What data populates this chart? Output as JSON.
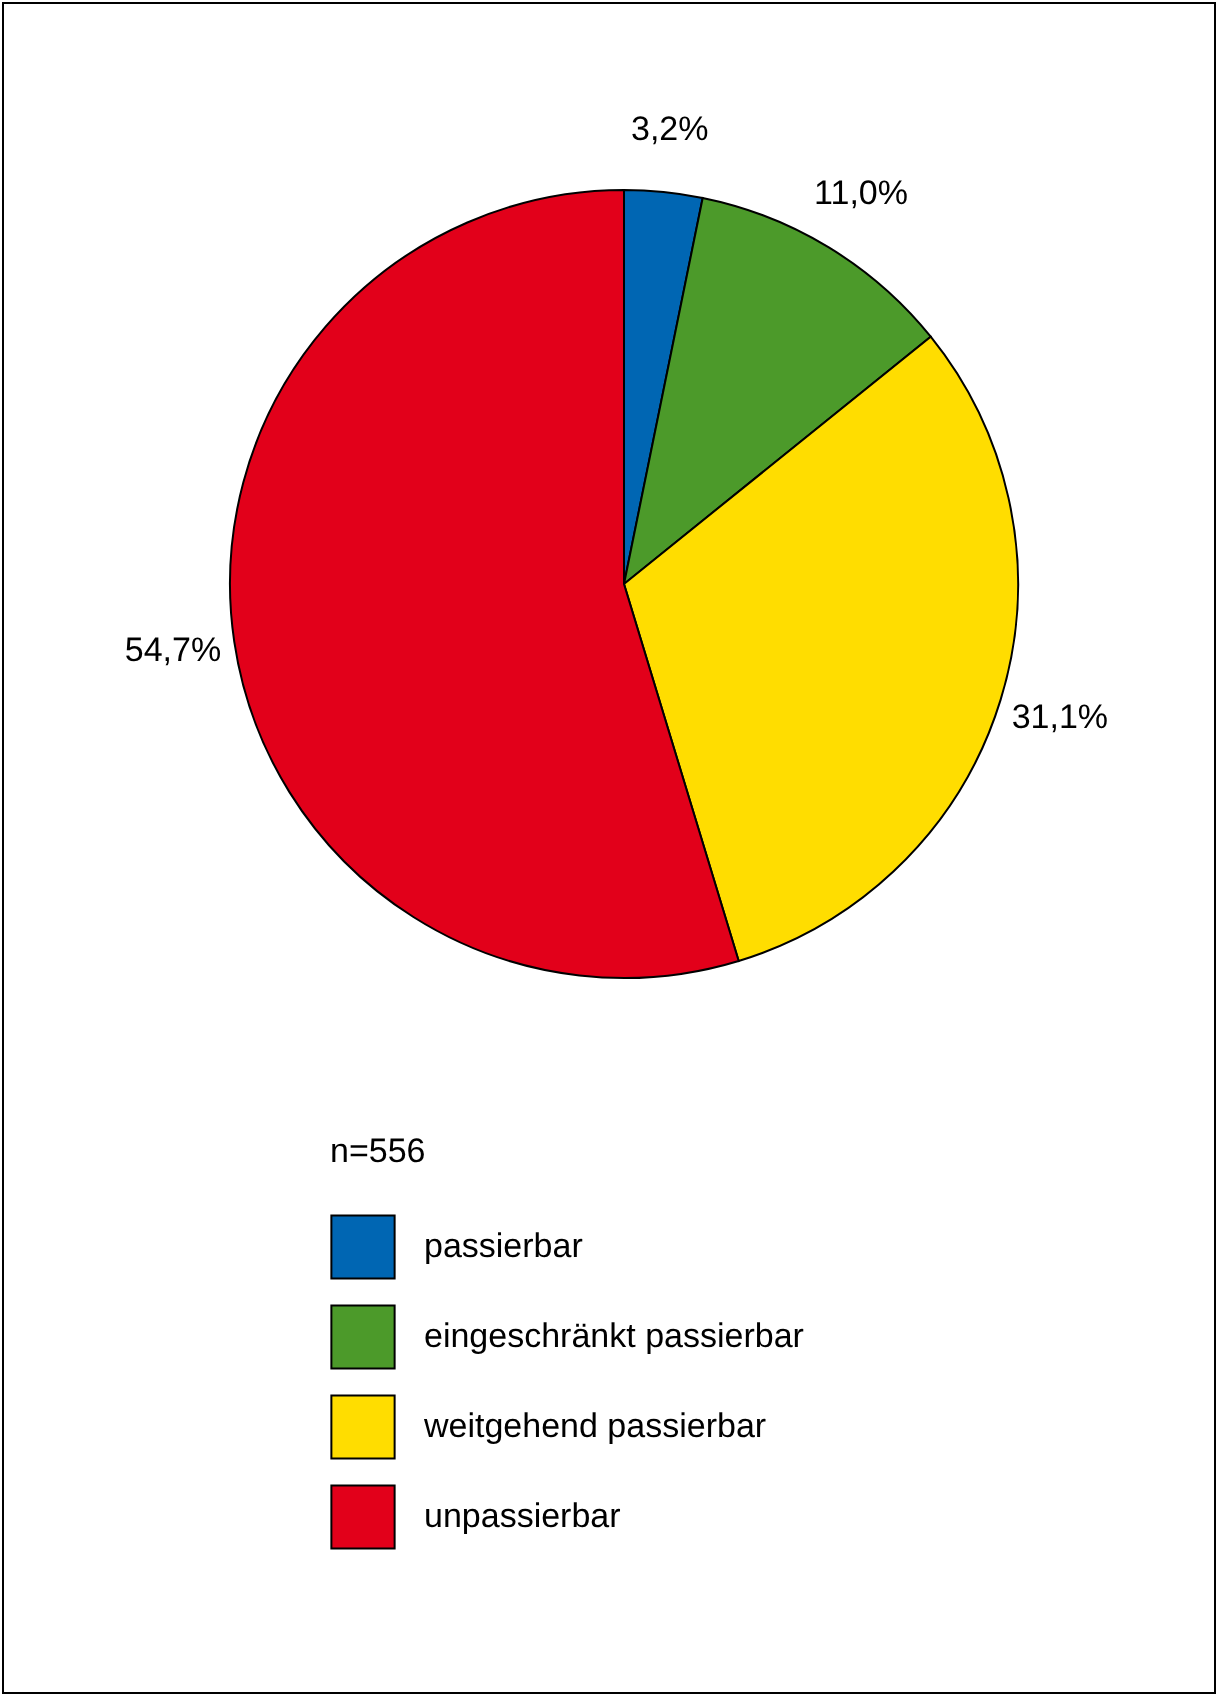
{
  "chart_data": {
    "type": "pie",
    "legend_title": "n=556",
    "legend": "bottom",
    "categories": [
      "passierbar",
      "eingeschränkt passierbar",
      "weitgehend passierbar",
      "unpassierbar"
    ],
    "values": [
      3.2,
      11.0,
      31.1,
      54.7
    ],
    "colors": [
      "#0066b3",
      "#4c9a2a",
      "#ffdd00",
      "#e2001a"
    ],
    "value_labels": [
      "3,2%",
      "11,0%",
      "31,1%",
      "54,7%"
    ]
  }
}
